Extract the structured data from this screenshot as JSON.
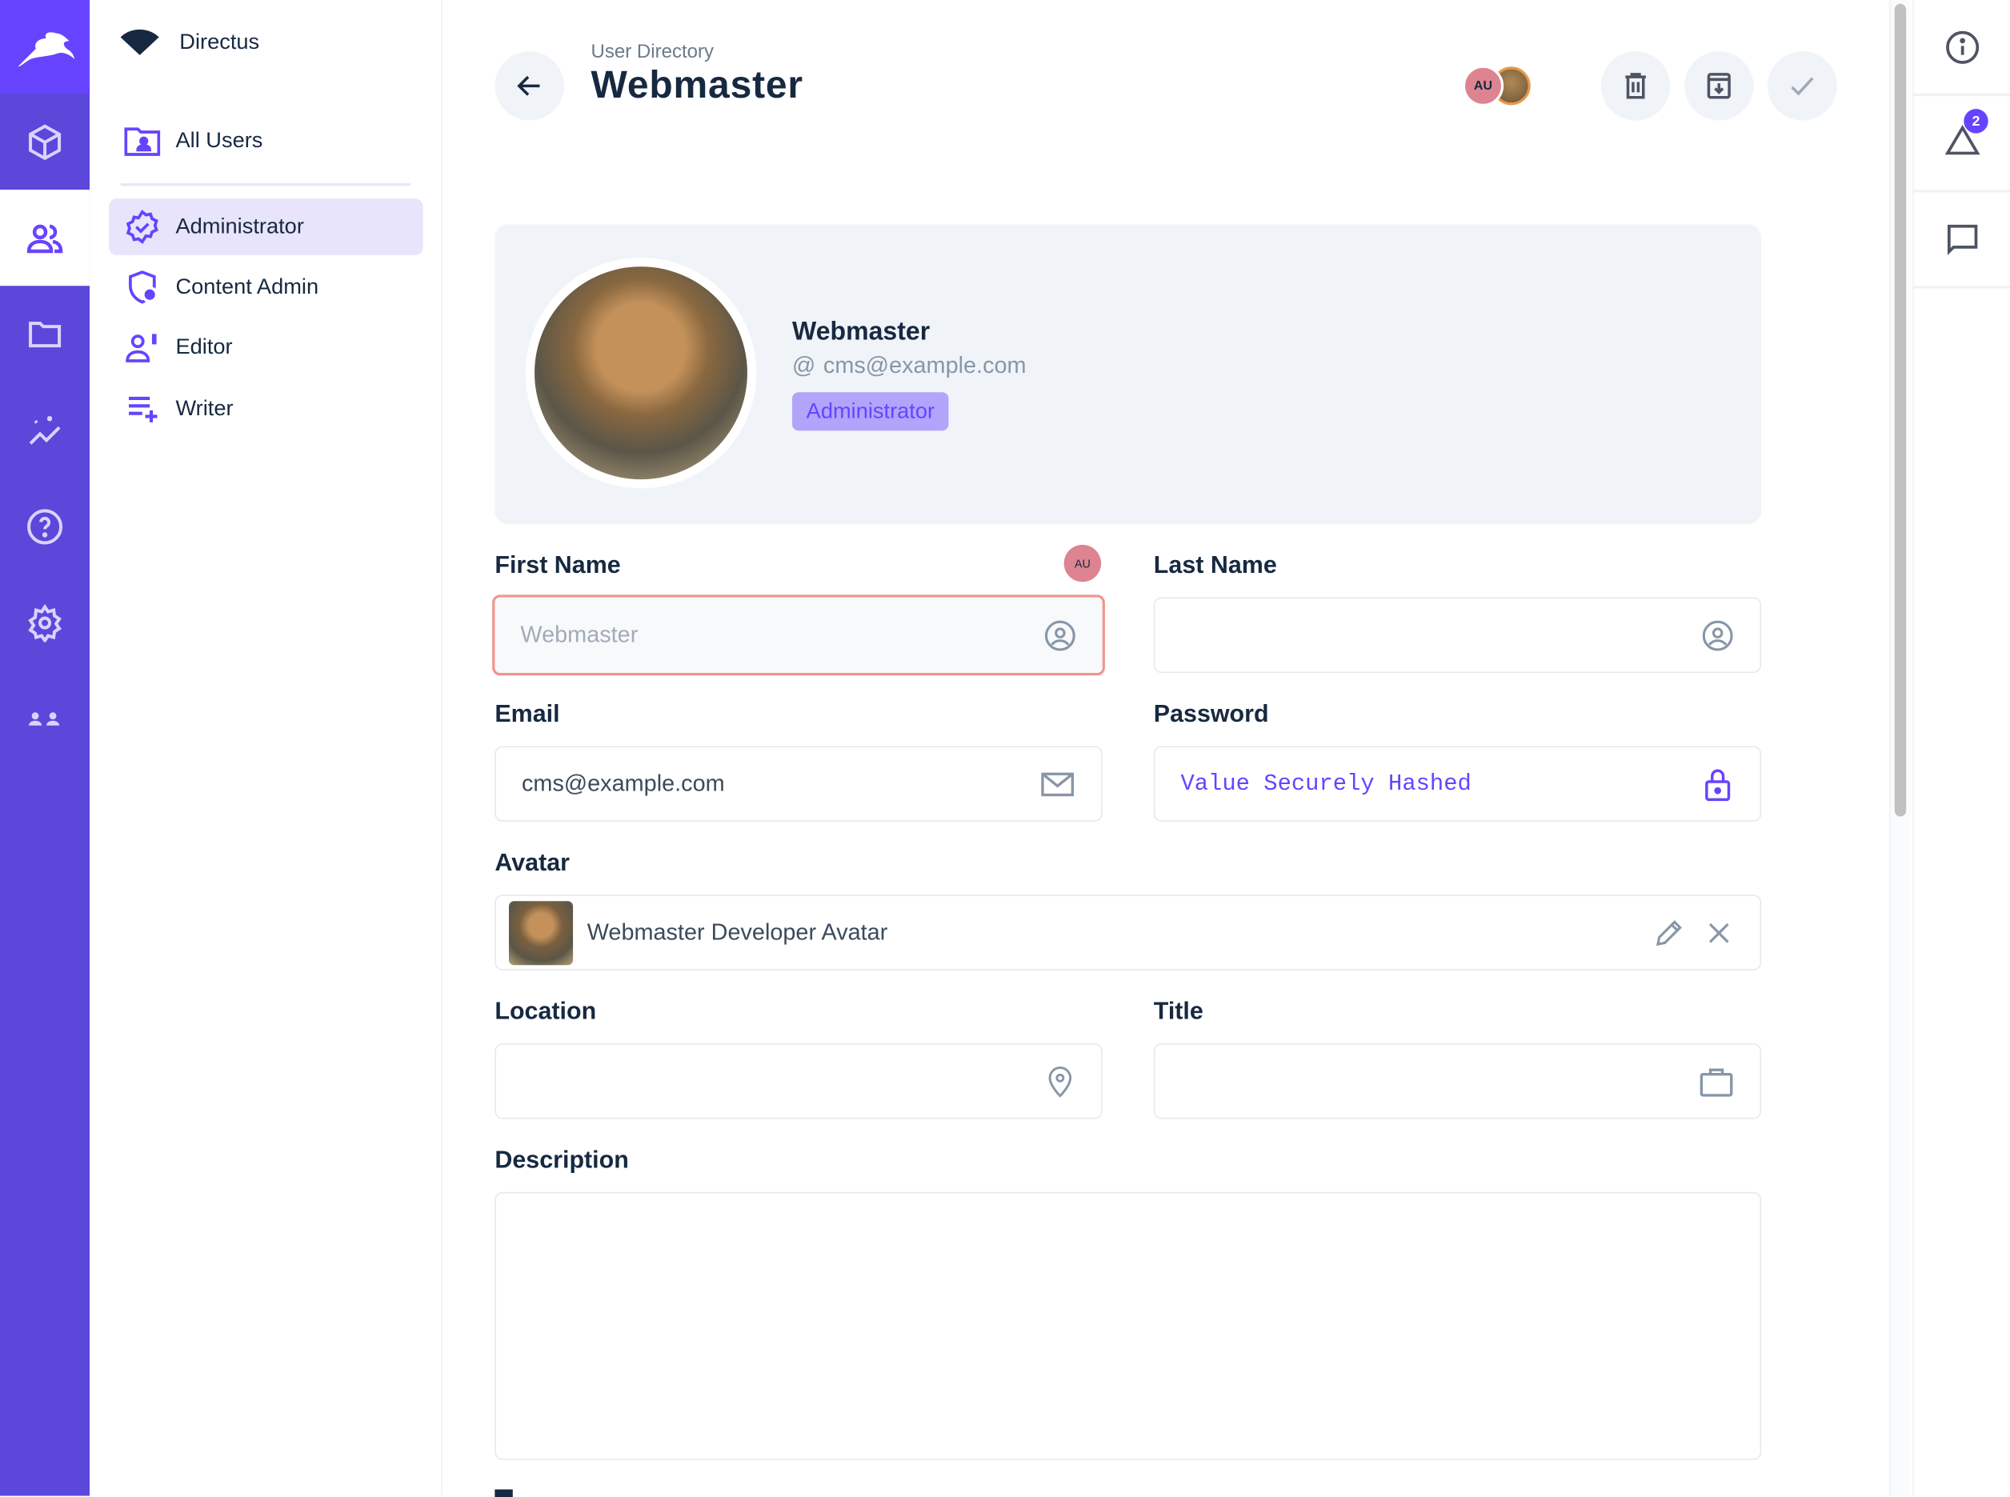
{
  "project": {
    "name": "Directus"
  },
  "rail": {
    "items": [
      {
        "icon": "cube-icon"
      },
      {
        "icon": "users-icon",
        "active": true
      },
      {
        "icon": "folder-icon"
      },
      {
        "icon": "insights-icon"
      },
      {
        "icon": "help-icon"
      },
      {
        "icon": "settings-icon"
      },
      {
        "icon": "visitors-icon"
      }
    ]
  },
  "nav": {
    "all_users": "All Users",
    "roles": [
      {
        "label": "Administrator",
        "selected": true
      },
      {
        "label": "Content Admin"
      },
      {
        "label": "Editor"
      },
      {
        "label": "Writer"
      }
    ]
  },
  "header": {
    "breadcrumb": "User Directory",
    "title": "Webmaster",
    "presence_initials": "AU"
  },
  "profile": {
    "name": "Webmaster",
    "email": "cms@example.com",
    "role": "Administrator"
  },
  "form": {
    "first_name": {
      "label": "First Name",
      "placeholder": "Webmaster",
      "value": "",
      "editor_initials": "AU"
    },
    "last_name": {
      "label": "Last Name",
      "value": ""
    },
    "email": {
      "label": "Email",
      "value": "cms@example.com"
    },
    "password": {
      "label": "Password",
      "value": "Value Securely Hashed"
    },
    "avatar": {
      "label": "Avatar",
      "value": "Webmaster Developer Avatar"
    },
    "location": {
      "label": "Location",
      "value": ""
    },
    "title": {
      "label": "Title",
      "value": ""
    },
    "description": {
      "label": "Description",
      "value": ""
    }
  },
  "sidebar": {
    "notifications_count": "2"
  },
  "colors": {
    "primary": "#6644ff",
    "rail": "#5b48da",
    "focus_border": "#f0958c",
    "presence": "#dd8490"
  }
}
